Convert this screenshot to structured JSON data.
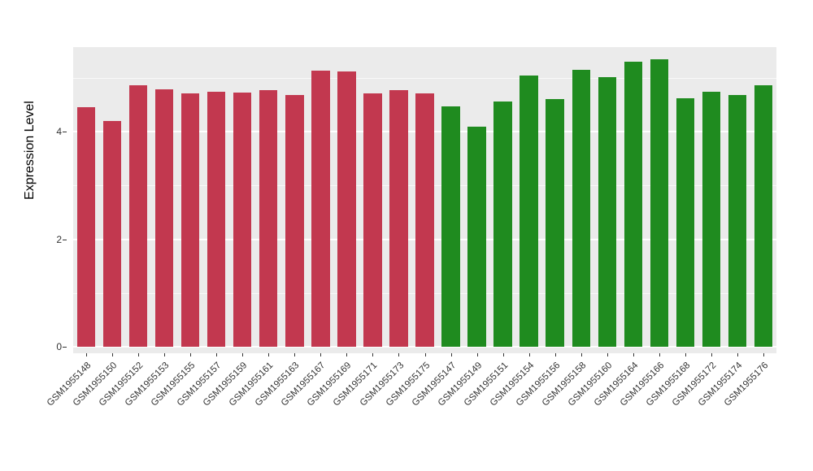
{
  "figure": {
    "background": "#FFFFFF",
    "panel_background": "#EBEBEB",
    "grid_color": "#FFFFFF",
    "axis_text_color": "#333333"
  },
  "chart_data": {
    "type": "bar",
    "title": "",
    "xlabel": "",
    "ylabel": "Expression Level",
    "ylim": [
      0,
      5.57
    ],
    "yticks_major": [
      0,
      2,
      4
    ],
    "yticks_minor": [
      1,
      3,
      5
    ],
    "grid": "on",
    "legend": "none",
    "group_colors": {
      "red": "#C2384F",
      "green": "#1F8B1F"
    },
    "categories": [
      "GSM1955148",
      "GSM1955150",
      "GSM1955152",
      "GSM1955153",
      "GSM1955155",
      "GSM1955157",
      "GSM1955159",
      "GSM1955161",
      "GSM1955163",
      "GSM1955167",
      "GSM1955169",
      "GSM1955171",
      "GSM1955173",
      "GSM1955175",
      "GSM1955147",
      "GSM1955149",
      "GSM1955151",
      "GSM1955154",
      "GSM1955156",
      "GSM1955158",
      "GSM1955160",
      "GSM1955164",
      "GSM1955166",
      "GSM1955168",
      "GSM1955172",
      "GSM1955174",
      "GSM1955176"
    ],
    "values": [
      4.45,
      4.2,
      4.86,
      4.78,
      4.71,
      4.74,
      4.72,
      4.77,
      4.68,
      5.13,
      5.12,
      4.71,
      4.77,
      4.71,
      4.47,
      4.09,
      4.56,
      5.04,
      4.6,
      5.15,
      5.01,
      5.3,
      5.34,
      4.62,
      4.74,
      4.68,
      4.86
    ],
    "groups": [
      "red",
      "red",
      "red",
      "red",
      "red",
      "red",
      "red",
      "red",
      "red",
      "red",
      "red",
      "red",
      "red",
      "red",
      "green",
      "green",
      "green",
      "green",
      "green",
      "green",
      "green",
      "green",
      "green",
      "green",
      "green",
      "green",
      "green"
    ]
  }
}
